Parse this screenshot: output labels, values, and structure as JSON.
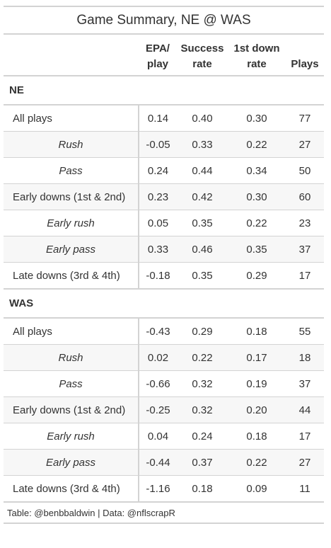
{
  "chart_data": {
    "type": "table",
    "title": "Game Summary, NE @ WAS",
    "columns": [
      "",
      "EPA/ play",
      "Success rate",
      "1st down rate",
      "Plays"
    ],
    "column_lines": [
      [
        "EPA/",
        "play"
      ],
      [
        "Success",
        "rate"
      ],
      [
        "1st down",
        "rate"
      ],
      [
        "Plays"
      ]
    ],
    "groups": [
      {
        "name": "NE",
        "rows": [
          {
            "label": "All plays",
            "sub": false,
            "values": [
              "0.14",
              "0.40",
              "0.30",
              "77"
            ]
          },
          {
            "label": "Rush",
            "sub": true,
            "values": [
              "-0.05",
              "0.33",
              "0.22",
              "27"
            ]
          },
          {
            "label": "Pass",
            "sub": true,
            "values": [
              "0.24",
              "0.44",
              "0.34",
              "50"
            ]
          },
          {
            "label": "Early downs (1st & 2nd)",
            "sub": false,
            "values": [
              "0.23",
              "0.42",
              "0.30",
              "60"
            ]
          },
          {
            "label": "Early rush",
            "sub": true,
            "values": [
              "0.05",
              "0.35",
              "0.22",
              "23"
            ]
          },
          {
            "label": "Early pass",
            "sub": true,
            "values": [
              "0.33",
              "0.46",
              "0.35",
              "37"
            ]
          },
          {
            "label": "Late downs (3rd & 4th)",
            "sub": false,
            "values": [
              "-0.18",
              "0.35",
              "0.29",
              "17"
            ]
          }
        ]
      },
      {
        "name": "WAS",
        "rows": [
          {
            "label": "All plays",
            "sub": false,
            "values": [
              "-0.43",
              "0.29",
              "0.18",
              "55"
            ]
          },
          {
            "label": "Rush",
            "sub": true,
            "values": [
              "0.02",
              "0.22",
              "0.17",
              "18"
            ]
          },
          {
            "label": "Pass",
            "sub": true,
            "values": [
              "-0.66",
              "0.32",
              "0.19",
              "37"
            ]
          },
          {
            "label": "Early downs (1st & 2nd)",
            "sub": false,
            "values": [
              "-0.25",
              "0.32",
              "0.20",
              "44"
            ]
          },
          {
            "label": "Early rush",
            "sub": true,
            "values": [
              "0.04",
              "0.24",
              "0.18",
              "17"
            ]
          },
          {
            "label": "Early pass",
            "sub": true,
            "values": [
              "-0.44",
              "0.37",
              "0.22",
              "27"
            ]
          },
          {
            "label": "Late downs (3rd & 4th)",
            "sub": false,
            "values": [
              "-1.16",
              "0.18",
              "0.09",
              "11"
            ]
          }
        ]
      }
    ],
    "source_note": "Table: @benbbaldwin | Data: @nflscrapR",
    "colors": {
      "border": "#d3d3d3",
      "text": "#333333",
      "stripe": "#f7f7f7"
    }
  }
}
